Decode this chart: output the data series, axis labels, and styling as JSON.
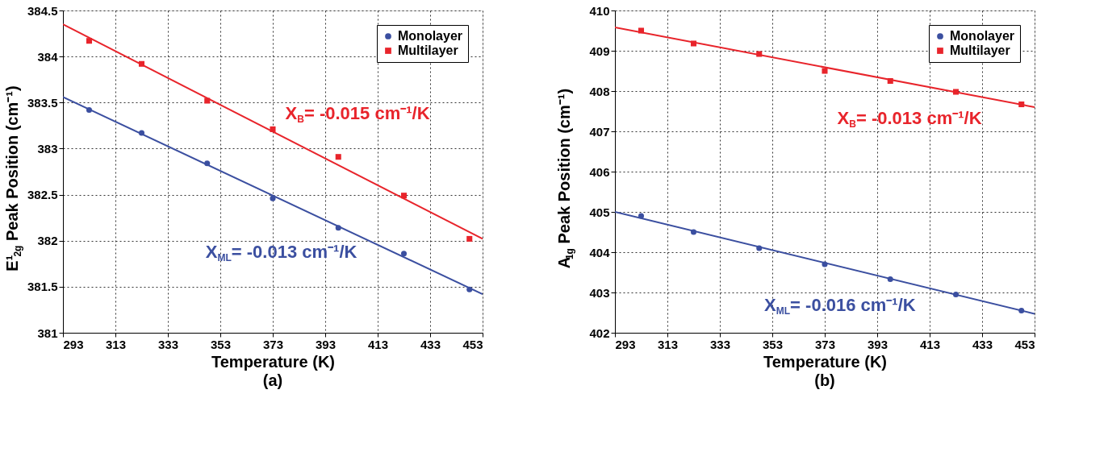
{
  "chart_data": [
    {
      "type": "scatter",
      "title": "(a)",
      "xlabel": "Temperature (K)",
      "ylabel": "E¹$_{2g}$ Peak Position (cm⁻¹)",
      "xlim": [
        293,
        453
      ],
      "xticks": [
        293,
        313,
        333,
        353,
        373,
        393,
        413,
        433,
        453
      ],
      "ylim": [
        381,
        384.5
      ],
      "yticks": [
        381,
        381.5,
        382,
        382.5,
        383,
        383.5,
        384,
        384.5
      ],
      "grid": true,
      "legend": "top right",
      "series": [
        {
          "name": "Monolayer",
          "type": "scatter",
          "marker": "circle",
          "color": "#3b4fa0",
          "x": [
            303,
            323,
            348,
            373,
            398,
            423,
            448
          ],
          "values": [
            383.42,
            383.17,
            382.84,
            382.46,
            382.14,
            381.86,
            381.47
          ]
        },
        {
          "name": "Multilayer",
          "type": "scatter",
          "marker": "square",
          "color": "#e8242b",
          "x": [
            303,
            323,
            348,
            373,
            398,
            423,
            448
          ],
          "values": [
            384.17,
            383.92,
            383.52,
            383.21,
            382.91,
            382.49,
            382.02
          ]
        },
        {
          "type": "line",
          "color": "#3b4fa0",
          "x": [
            293,
            453
          ],
          "values": [
            383.56,
            381.42
          ]
        },
        {
          "type": "line",
          "color": "#e8242b",
          "x": [
            293,
            453
          ],
          "values": [
            384.35,
            382.02
          ]
        }
      ],
      "annotations": [
        "X$_{B}$= -0.015 cm⁻¹/K",
        "X$_{ML}$= -0.013 cm⁻¹/K"
      ]
    },
    {
      "type": "scatter",
      "title": "(b)",
      "xlabel": "Temperature (K)",
      "ylabel": "A$_{1g}$ Peak Position (cm⁻¹)",
      "xlim": [
        293,
        453
      ],
      "xticks": [
        293,
        313,
        333,
        353,
        373,
        393,
        413,
        433,
        453
      ],
      "ylim": [
        402,
        410
      ],
      "yticks": [
        402,
        403,
        404,
        405,
        406,
        407,
        408,
        409,
        410
      ],
      "grid": true,
      "legend": "top right",
      "series": [
        {
          "name": "Monolayer",
          "type": "scatter",
          "marker": "circle",
          "color": "#3b4fa0",
          "x": [
            303,
            323,
            348,
            373,
            398,
            423,
            448
          ],
          "values": [
            404.9,
            404.5,
            404.1,
            403.7,
            403.33,
            402.95,
            402.55
          ]
        },
        {
          "name": "Multilayer",
          "type": "scatter",
          "marker": "square",
          "color": "#e8242b",
          "x": [
            303,
            323,
            348,
            373,
            398,
            423,
            448
          ],
          "values": [
            409.5,
            409.18,
            408.92,
            408.5,
            408.25,
            407.98,
            407.67
          ]
        },
        {
          "type": "line",
          "color": "#3b4fa0",
          "x": [
            293,
            453
          ],
          "values": [
            405.0,
            402.47
          ]
        },
        {
          "type": "line",
          "color": "#e8242b",
          "x": [
            293,
            453
          ],
          "values": [
            409.58,
            407.6
          ]
        }
      ],
      "annotations": [
        "X$_{B}$= -0.013 cm⁻¹/K",
        "X$_{ML}$= -0.016 cm⁻¹/K"
      ]
    }
  ]
}
